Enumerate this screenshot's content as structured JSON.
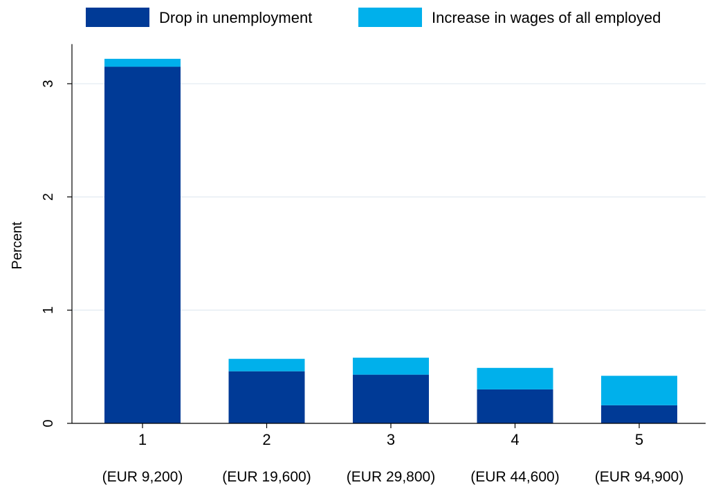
{
  "chart_data": {
    "type": "bar",
    "stacked": true,
    "categories": [
      "1",
      "2",
      "3",
      "4",
      "5"
    ],
    "category_sublabels": [
      "(EUR 9,200)",
      "(EUR 19,600)",
      "(EUR 29,800)",
      "(EUR 44,600)",
      "(EUR 94,900)"
    ],
    "series": [
      {
        "name": "Drop in unemployment",
        "values": [
          3.15,
          0.46,
          0.43,
          0.3,
          0.16
        ],
        "color": "#003a96"
      },
      {
        "name": "Increase in wages of all employed",
        "values": [
          0.07,
          0.11,
          0.15,
          0.19,
          0.26
        ],
        "color": "#00b0eb"
      }
    ],
    "ylabel": "Percent",
    "xlabel": "",
    "title": "",
    "ylim": [
      0,
      3.35
    ],
    "yticks": [
      0,
      1,
      2,
      3
    ],
    "grid": true,
    "grid_color": "#e4ecf2",
    "legend_position": "top"
  }
}
